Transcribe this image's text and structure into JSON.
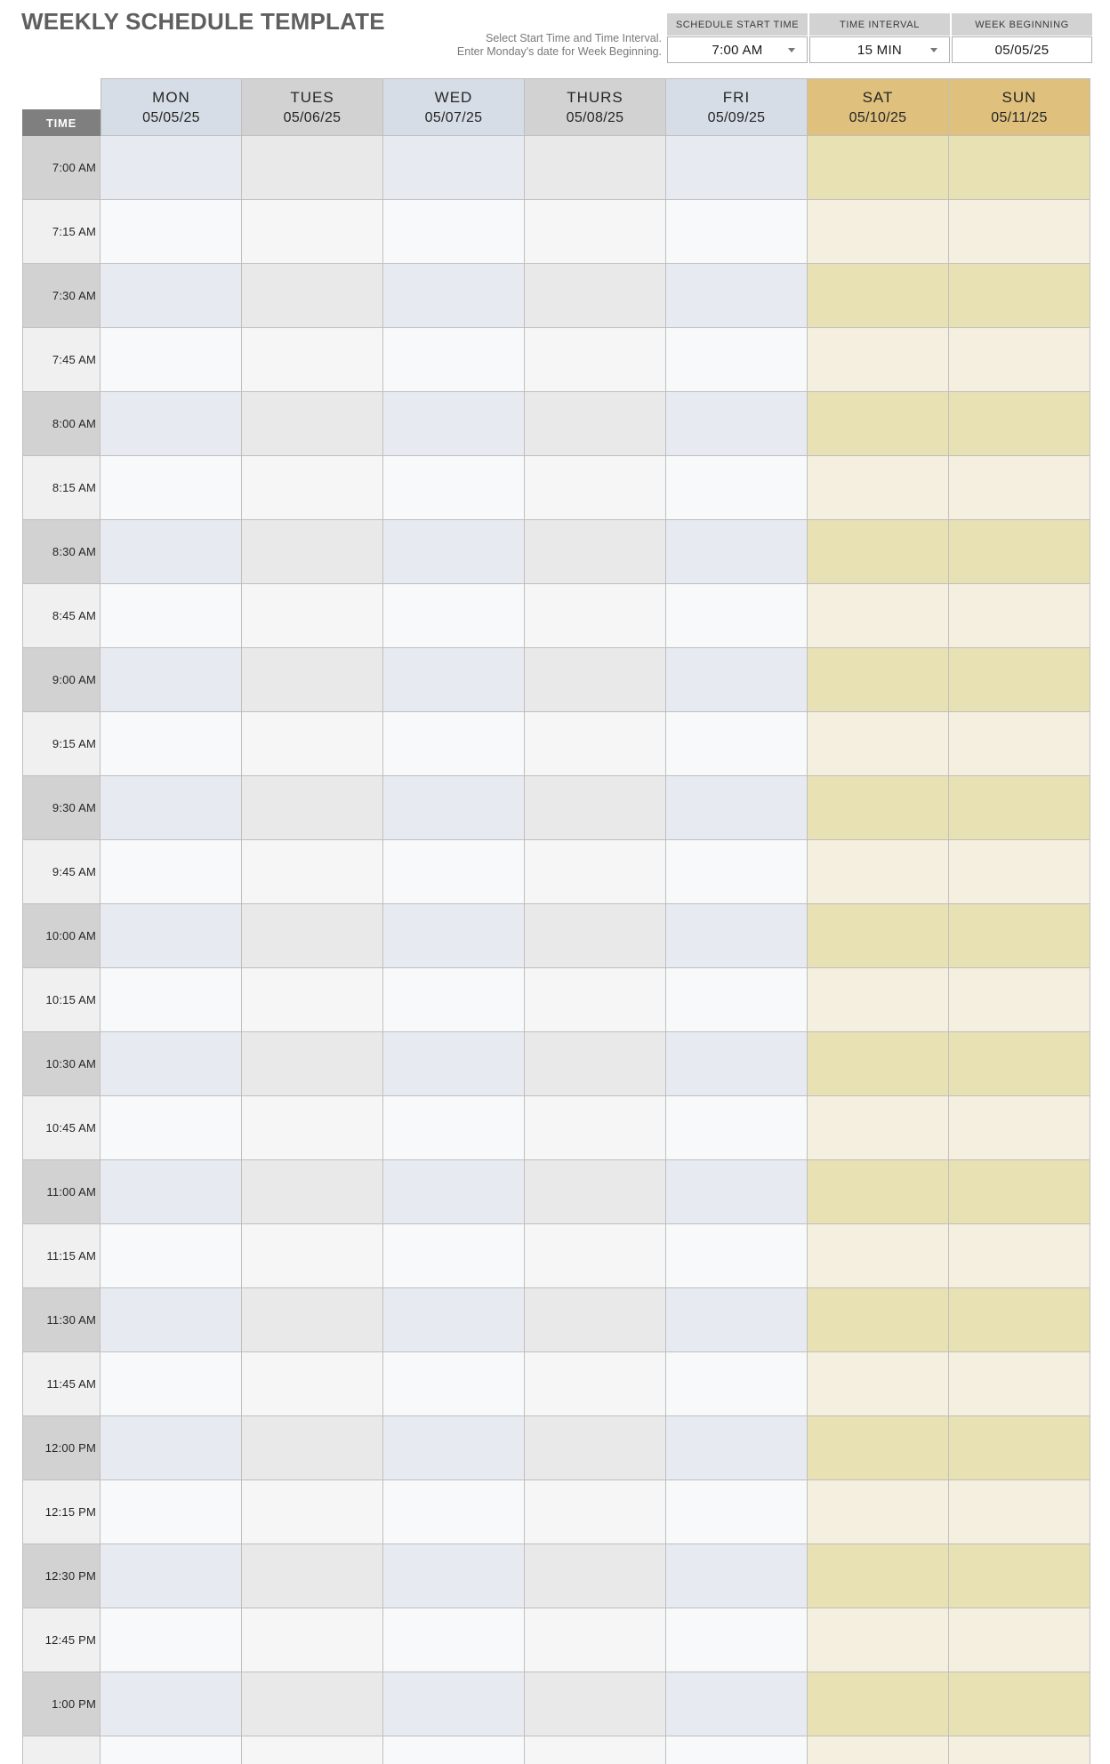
{
  "page": {
    "title": "WEEKLY SCHEDULE TEMPLATE",
    "instructions": [
      "Select Start Time and Time Interval.",
      "Enter Monday's date for Week Beginning."
    ]
  },
  "controls": [
    {
      "label": "SCHEDULE START TIME",
      "value": "7:00 AM",
      "has_dropdown": true
    },
    {
      "label": "TIME INTERVAL",
      "value": "15 MIN",
      "has_dropdown": true
    },
    {
      "label": "WEEK BEGINNING",
      "value": "05/05/25",
      "has_dropdown": false
    }
  ],
  "schedule": {
    "time_header": "TIME",
    "days": [
      {
        "name": "MON",
        "date": "05/05/25",
        "tone": "blue"
      },
      {
        "name": "TUES",
        "date": "05/06/25",
        "tone": "gray"
      },
      {
        "name": "WED",
        "date": "05/07/25",
        "tone": "blue"
      },
      {
        "name": "THURS",
        "date": "05/08/25",
        "tone": "gray"
      },
      {
        "name": "FRI",
        "date": "05/09/25",
        "tone": "blue"
      },
      {
        "name": "SAT",
        "date": "05/10/25",
        "tone": "tan"
      },
      {
        "name": "SUN",
        "date": "05/11/25",
        "tone": "tan"
      }
    ],
    "time_rows": [
      "7:00 AM",
      "7:15 AM",
      "7:30 AM",
      "7:45 AM",
      "8:00 AM",
      "8:15 AM",
      "8:30 AM",
      "8:45 AM",
      "9:00 AM",
      "9:15 AM",
      "9:30 AM",
      "9:45 AM",
      "10:00 AM",
      "10:15 AM",
      "10:30 AM",
      "10:45 AM",
      "11:00 AM",
      "11:15 AM",
      "11:30 AM",
      "11:45 AM",
      "12:00 PM",
      "12:15 PM",
      "12:30 PM",
      "12:45 PM",
      "1:00 PM",
      ""
    ]
  },
  "colors": {
    "grid": "#bfbfbf",
    "time-header-bg": "#7f7f7f",
    "time-col-even": "#d2d2d2",
    "time-col-odd": "#f0f0f0",
    "blue-header": "#d6dde6",
    "gray-header": "#d2d2d2",
    "tan-header": "#dfc07c",
    "blue-even": "#e7ebf1",
    "blue-odd": "#f7f9fb",
    "gray-even": "#e9e9e9",
    "gray-odd": "#f6f6f6",
    "tan-even": "#e7e1b3",
    "tan-odd": "#f4efde",
    "control-header-bg": "#d2d2d2",
    "control-border": "#b0b0b0",
    "title-color": "#5f5f5f",
    "instruction-color": "#7a7a7a",
    "cell-text": "#262626"
  }
}
